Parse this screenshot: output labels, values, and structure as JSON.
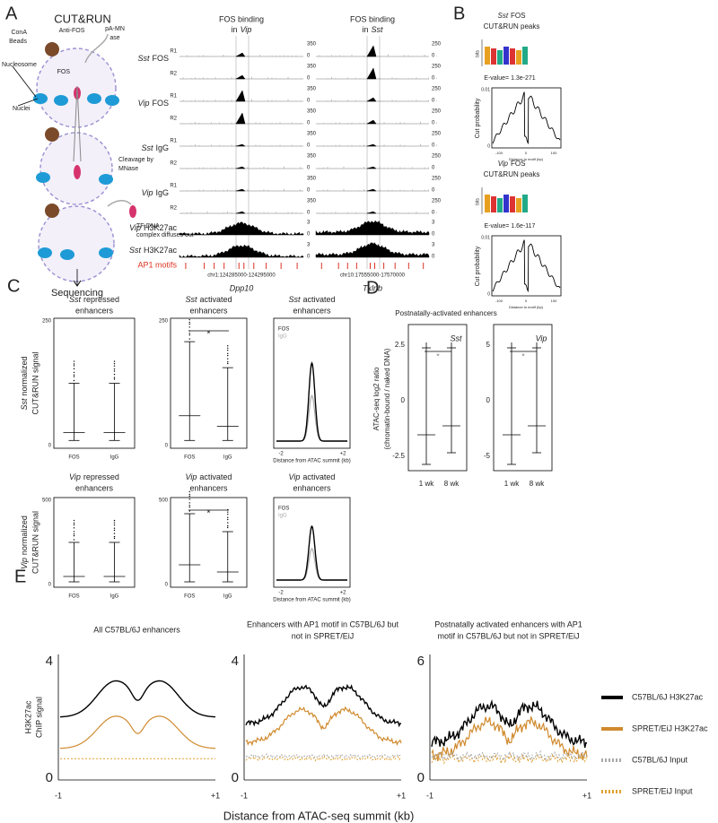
{
  "panel_a": {
    "label": "A",
    "title": "CUT&RUN",
    "diagram": [
      "ConA",
      "Beads",
      "Anti-FOS",
      "pA-MN",
      "ase",
      "Nucleosome",
      "FOS",
      "Nuclei",
      "Cleavage by",
      "MNase",
      "TF-DNA",
      "complex diffuses out",
      "Sequencing"
    ],
    "tracks": {
      "columns": [
        {
          "header": "FOS binding",
          "prefix": "in",
          "cell": "Vip",
          "fos_max": "350",
          "h3_max": "3",
          "coords": "chr1:124285000-124295000",
          "gene": "Dpp10"
        },
        {
          "header": "FOS binding",
          "prefix": "in",
          "cell": "Sst",
          "fos_max": "250",
          "h3_max": "3",
          "coords": "chr10:17555000-17570000",
          "gene": "Txlnb"
        }
      ],
      "zero": "0",
      "replicates": [
        "R1",
        "R2"
      ],
      "rows": [
        {
          "cell": "Sst",
          "target": "FOS"
        },
        {
          "cell": "Vip",
          "target": "FOS"
        },
        {
          "cell": "Sst",
          "target": "IgG"
        },
        {
          "cell": "Vip",
          "target": "IgG"
        }
      ],
      "histone_rows": [
        {
          "cell": "Vip",
          "target": "H3K27ac"
        },
        {
          "cell": "Sst",
          "target": "H3K27ac"
        }
      ],
      "motifs": "AP1 motifs"
    }
  },
  "panel_b": {
    "label": "B",
    "plots": [
      {
        "cell": "Sst",
        "title1": "FOS",
        "title2": "CUT&RUN peaks",
        "evalue": "E-value= 1.3e-271"
      },
      {
        "cell": "Vip",
        "title1": "FOS",
        "title2": "CUT&RUN peaks",
        "evalue": "E-value= 1.6e-117"
      }
    ],
    "bits": "bits",
    "ylabel": "Cut probability",
    "xlabel": "Distance to motif (bp)",
    "yticks": [
      "0.01",
      "0"
    ],
    "xticks": [
      "-100",
      "0",
      "100"
    ]
  },
  "panel_c": {
    "label": "C",
    "rows": [
      {
        "cell": "Sst",
        "ylabel1": "normalized",
        "ylabel2": "CUT&RUN signal",
        "ymax": "250",
        "ymax2": "250",
        "titles": [
          {
            "t1": "repressed",
            "t2": "enhancers"
          },
          {
            "t1": "activated",
            "t2": "enhancers"
          },
          {
            "t1": "activated",
            "t2": "enhancers"
          }
        ]
      },
      {
        "cell": "Vip",
        "ylabel1": "normalized",
        "ylabel2": "CUT&RUN signal",
        "ymax": "500",
        "ymax2": "500",
        "titles": [
          {
            "t1": "repressed",
            "t2": "enhancers"
          },
          {
            "t1": "activated",
            "t2": "enhancers"
          },
          {
            "t1": "activated",
            "t2": "enhancers"
          }
        ]
      }
    ],
    "zero": "0",
    "groups": [
      "FOS",
      "IgG"
    ],
    "star": "*",
    "xticks": [
      "-2",
      "+2"
    ],
    "xlabel": "Distance from ATAC summit (kb)"
  },
  "panel_d": {
    "label": "D",
    "title": "Postnatally-activated enhancers",
    "ylabel1": "ATAC-seq log2 ratio",
    "ylabel2": "(chromatin-bound / naked DNA)",
    "plots": [
      {
        "cell": "Sst",
        "yticks": [
          "2.5",
          "0",
          "-2.5"
        ]
      },
      {
        "cell": "Vip",
        "yticks": [
          "5",
          "0",
          "-5"
        ]
      }
    ],
    "groups": [
      "1 wk",
      "8 wk"
    ],
    "star": "*"
  },
  "panel_e": {
    "label": "E",
    "plots": [
      {
        "title": [
          "All C57BL/6J enhancers"
        ],
        "ymax": "4"
      },
      {
        "title": [
          "Enhancers with AP1 motif in C57BL/6J but",
          "not in SPRET/EiJ"
        ],
        "ymax": "4"
      },
      {
        "title": [
          "Postnatally activated enhancers with AP1",
          "motif in C57BL/6J but not in SPRET/EiJ"
        ],
        "ymax": "6"
      }
    ],
    "zero": "0",
    "xticks": [
      "-1",
      "+1"
    ],
    "ylabel": [
      "H3K27ac",
      "ChIP signal"
    ],
    "xlabel": "Distance from ATAC-seq summit (kb)",
    "legend": [
      {
        "name": "C57BL/6J H3K27ac",
        "color": "#000000",
        "dash": false
      },
      {
        "name": "SPRET/EiJ H3K27ac",
        "color": "#d08a2e",
        "dash": false
      },
      {
        "name": "C57BL/6J Input",
        "color": "#aaaaaa",
        "dash": true
      },
      {
        "name": "SPRET/EiJ Input",
        "color": "#e0a030",
        "dash": true
      }
    ]
  }
}
